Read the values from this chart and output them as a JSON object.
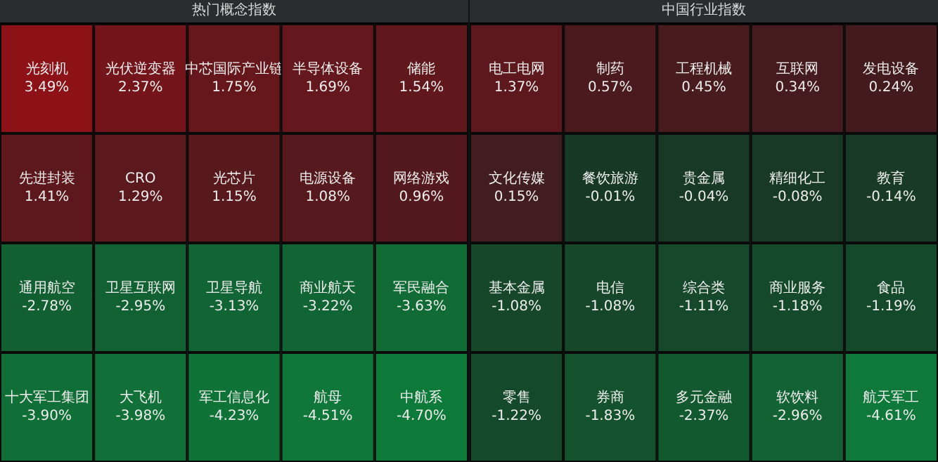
{
  "chart_data": [
    {
      "type": "other",
      "title": "热门概念指数",
      "categories": [
        "光刻机",
        "光伏逆变器",
        "中芯国际产业链",
        "半导体设备",
        "储能",
        "先进封装",
        "CRO",
        "光芯片",
        "电源设备",
        "网络游戏",
        "通用航空",
        "卫星互联网",
        "卫星导航",
        "商业航天",
        "军民融合",
        "十大军工集团",
        "大飞机",
        "军工信息化",
        "航母",
        "中航系"
      ],
      "values": [
        3.49,
        2.37,
        1.75,
        1.69,
        1.54,
        1.41,
        1.29,
        1.15,
        1.08,
        0.96,
        -2.78,
        -2.95,
        -3.13,
        -3.22,
        -3.63,
        -3.9,
        -3.98,
        -4.23,
        -4.51,
        -4.7
      ],
      "value_labels": [
        "3.49%",
        "2.37%",
        "1.75%",
        "1.69%",
        "1.54%",
        "1.41%",
        "1.29%",
        "1.15%",
        "1.08%",
        "0.96%",
        "-2.78%",
        "-2.95%",
        "-3.13%",
        "-3.22%",
        "-3.63%",
        "-3.90%",
        "-3.98%",
        "-4.23%",
        "-4.51%",
        "-4.70%"
      ]
    },
    {
      "type": "other",
      "title": "中国行业指数",
      "categories": [
        "电工电网",
        "制药",
        "工程机械",
        "互联网",
        "发电设备",
        "文化传媒",
        "餐饮旅游",
        "贵金属",
        "精细化工",
        "教育",
        "基本金属",
        "电信",
        "综合类",
        "商业服务",
        "食品",
        "零售",
        "券商",
        "多元金融",
        "软饮料",
        "航天军工"
      ],
      "values": [
        1.37,
        0.57,
        0.45,
        0.34,
        0.24,
        0.15,
        -0.01,
        -0.04,
        -0.08,
        -0.14,
        -1.08,
        -1.08,
        -1.11,
        -1.18,
        -1.19,
        -1.22,
        -1.83,
        -2.37,
        -2.96,
        -4.61
      ],
      "value_labels": [
        "1.37%",
        "0.57%",
        "0.45%",
        "0.34%",
        "0.24%",
        "0.15%",
        "-0.01%",
        "-0.04%",
        "-0.08%",
        "-0.14%",
        "-1.08%",
        "-1.08%",
        "-1.11%",
        "-1.18%",
        "-1.19%",
        "-1.22%",
        "-1.83%",
        "-2.37%",
        "-2.96%",
        "-4.61%"
      ]
    }
  ]
}
